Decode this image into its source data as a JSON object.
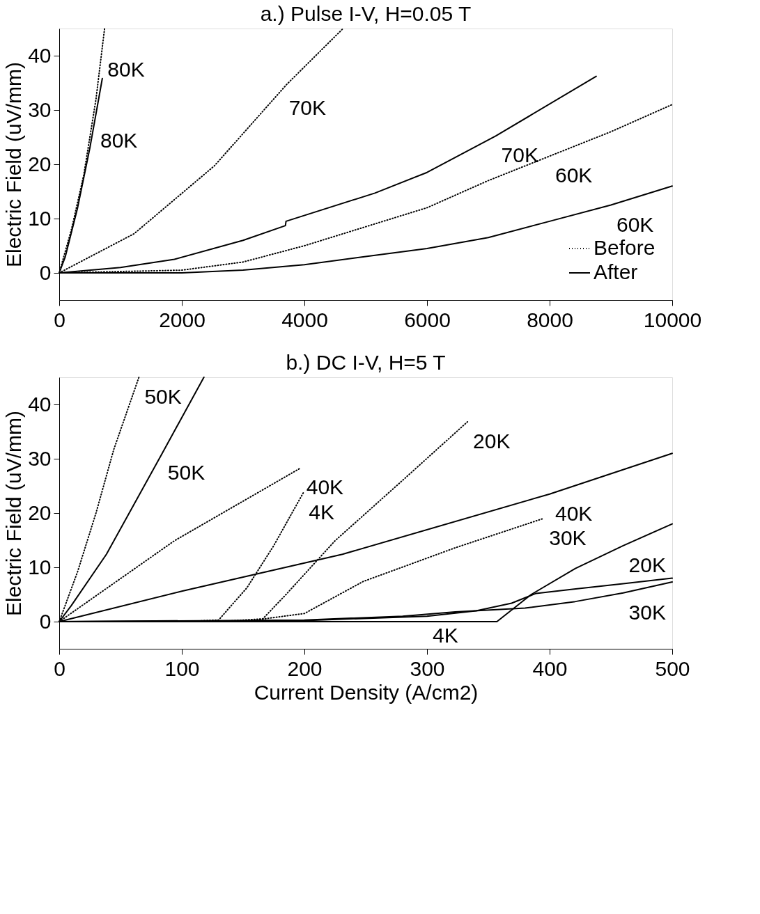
{
  "chart_data": [
    {
      "type": "line",
      "title": "a.) Pulse I-V, H=0.05 T",
      "ylabel": "Electric Field (uV/mm)",
      "xlim": [
        0,
        10000
      ],
      "ylim": [
        -5,
        45
      ],
      "xticks": [
        0,
        2000,
        4000,
        6000,
        8000,
        10000
      ],
      "yticks": [
        0,
        10,
        20,
        30,
        40
      ],
      "grid": false,
      "legend": "bottom right",
      "marker": "none",
      "series": [
        {
          "name": "Before",
          "color": "#000000",
          "line_style": "dotted",
          "x": [
            0,
            200,
            400,
            600,
            740
          ],
          "values": [
            0,
            8,
            18,
            32,
            45
          ]
        },
        {
          "name": "After",
          "color": "#000000",
          "line_style": "solid",
          "x": [
            0,
            100,
            300,
            500,
            703
          ],
          "values": [
            0,
            3,
            12,
            23,
            35.8
          ]
        },
        {
          "color": "#000000",
          "line_style": "dotted",
          "x": [
            0,
            1220,
            2530,
            3710,
            4630
          ],
          "values": [
            0,
            7.2,
            19.7,
            34.7,
            45
          ]
        },
        {
          "color": "#000000",
          "line_style": "solid",
          "x": [
            0,
            1000,
            1880,
            3000,
            3690,
            3700,
            5150,
            6000,
            7120,
            8760
          ],
          "values": [
            0,
            1.0,
            2.5,
            6,
            8.7,
            9.5,
            14.7,
            18.5,
            25.2,
            36.2
          ]
        },
        {
          "color": "#000000",
          "line_style": "dotted",
          "x": [
            0,
            2000,
            3000,
            4000,
            5000,
            6000,
            7000,
            8000,
            9000,
            10000
          ],
          "values": [
            0,
            0.5,
            2,
            5,
            8.5,
            12,
            17,
            21.5,
            26,
            31
          ]
        },
        {
          "color": "#000000",
          "line_style": "solid",
          "x": [
            0,
            2000,
            3000,
            4000,
            5000,
            6000,
            7000,
            8000,
            9000,
            10000
          ],
          "values": [
            0,
            0,
            0.5,
            1.5,
            3,
            4.5,
            6.5,
            9.5,
            12.5,
            16
          ]
        }
      ],
      "annotations": [
        {
          "text": "80K",
          "x": 697,
          "y": 41
        },
        {
          "text": "80K",
          "x": 579,
          "y": 28
        },
        {
          "text": "70K",
          "x": 3655,
          "y": 34
        },
        {
          "text": "70K",
          "x": 7120,
          "y": 25.2
        },
        {
          "text": "60K",
          "x": 8000,
          "y": 21.5
        },
        {
          "text": "60K",
          "x": 9000,
          "y": 12.5
        }
      ]
    },
    {
      "type": "line",
      "title": "b.) DC I-V, H=5 T",
      "xlabel": "Current Density (A/cm2)",
      "ylabel": "Electric Field (uV/mm)",
      "xlim": [
        0,
        500
      ],
      "ylim": [
        -5,
        45
      ],
      "xticks": [
        0,
        100,
        200,
        300,
        400,
        500
      ],
      "yticks": [
        0,
        10,
        20,
        30,
        40
      ],
      "grid": false,
      "legend": false,
      "marker": "none",
      "series": [
        {
          "color": "#000000",
          "line_style": "dotted",
          "x": [
            0,
            15,
            30,
            44.5,
            65
          ],
          "values": [
            0,
            9.2,
            20,
            31.7,
            45
          ]
        },
        {
          "color": "#000000",
          "line_style": "solid",
          "x": [
            0,
            10,
            38.5,
            84,
            118
          ],
          "values": [
            0,
            3,
            12.4,
            31,
            45
          ]
        },
        {
          "color": "#000000",
          "line_style": "dotted",
          "x": [
            0,
            94,
            197
          ],
          "values": [
            0,
            14.9,
            28.3
          ]
        },
        {
          "color": "#000000",
          "line_style": "dotted",
          "x": [
            0,
            100,
            130,
            153,
            175,
            199
          ],
          "values": [
            0,
            0,
            0.3,
            6.2,
            14,
            23.7
          ]
        },
        {
          "color": "#000000",
          "line_style": "dotted",
          "x": [
            0,
            130,
            166,
            185,
            225,
            280,
            333
          ],
          "values": [
            0,
            0,
            0.5,
            5,
            14.9,
            26,
            36.8
          ]
        },
        {
          "color": "#000000",
          "line_style": "dotted",
          "x": [
            0,
            150,
            200,
            248,
            323,
            395
          ],
          "values": [
            0,
            0,
            1.5,
            7.4,
            13.6,
            19
          ]
        },
        {
          "color": "#000000",
          "line_style": "solid",
          "x": [
            0,
            100,
            231,
            400,
            500
          ],
          "values": [
            0,
            5.6,
            12.4,
            23.5,
            31
          ]
        },
        {
          "color": "#000000",
          "line_style": "solid",
          "x": [
            0,
            357,
            385,
            421,
            460,
            500
          ],
          "values": [
            0,
            0,
            5,
            9.8,
            14,
            18
          ]
        },
        {
          "color": "#000000",
          "line_style": "solid",
          "x": [
            0,
            200,
            300,
            340,
            369,
            389,
            420,
            460,
            500
          ],
          "values": [
            0,
            0.2,
            1,
            2,
            3.4,
            5.2,
            6,
            7,
            8
          ]
        },
        {
          "color": "#000000",
          "line_style": "solid",
          "x": [
            0,
            200,
            280,
            323,
            380,
            421,
            460,
            500
          ],
          "values": [
            0,
            0.3,
            1,
            1.8,
            2.5,
            3.7,
            5.3,
            7.3
          ]
        }
      ],
      "annotations": [
        {
          "text": "50K",
          "x": 65,
          "y": 45
        },
        {
          "text": "50K",
          "x": 84,
          "y": 31
        },
        {
          "text": "40K",
          "x": 197,
          "y": 28.3
        },
        {
          "text": "4K",
          "x": 199,
          "y": 23.7
        },
        {
          "text": "20K",
          "x": 333,
          "y": 36.8
        },
        {
          "text": "40K",
          "x": 400,
          "y": 23.5
        },
        {
          "text": "30K",
          "x": 395,
          "y": 19
        },
        {
          "text": "20K",
          "x": 460,
          "y": 14
        },
        {
          "text": "30K",
          "x": 460,
          "y": 5.3
        },
        {
          "text": "4K",
          "x": 300,
          "y": 1
        }
      ]
    }
  ]
}
